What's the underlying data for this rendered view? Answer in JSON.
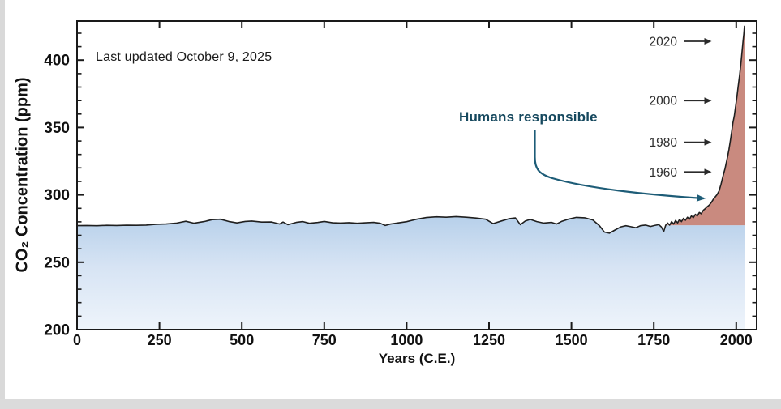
{
  "page": {
    "background": "#ffffff",
    "edge_strip_color": "#d9d9d9",
    "bottom_band_color": "#dbdbdb"
  },
  "chart_data": {
    "type": "area",
    "note": "Last updated October 9, 2025",
    "xlabel": "Years (C.E.)",
    "ylabel": "CO₂ Concentration (ppm)",
    "xlim": [
      0,
      2062
    ],
    "ylim": [
      200,
      429
    ],
    "x_ticks": [
      0,
      250,
      500,
      750,
      1000,
      1250,
      1500,
      1750,
      2000
    ],
    "y_ticks": [
      200,
      250,
      300,
      350,
      400
    ],
    "y_minor_step": 10,
    "grid": false,
    "legend": "none",
    "baseline_ppm": 277.5,
    "human_era_start_year": 1790,
    "annotation": {
      "label": "Humans responsible",
      "text_color": "#15485e",
      "arrow_color": "#1d5c77"
    },
    "year_callouts": [
      {
        "label": "2020",
        "ppm": 414
      },
      {
        "label": "2000",
        "ppm": 370
      },
      {
        "label": "1980",
        "ppm": 339
      },
      {
        "label": "1960",
        "ppm": 317
      }
    ],
    "colors": {
      "line": "#1f1f1f",
      "frame": "#1a1a1a",
      "area_blue_top": "#b7d0ea",
      "area_blue_mid": "#d7e4f4",
      "area_blue_bottom": "#eef4fb",
      "area_red": "#c98a7f",
      "callout_arrow": "#2a2a2a"
    },
    "series": [
      {
        "name": "CO2 concentration (ppm)",
        "points": [
          [
            0,
            277.2
          ],
          [
            30,
            277.3
          ],
          [
            60,
            277.1
          ],
          [
            90,
            277.4
          ],
          [
            120,
            277.3
          ],
          [
            150,
            277.5
          ],
          [
            180,
            277.4
          ],
          [
            210,
            277.6
          ],
          [
            240,
            278.2
          ],
          [
            270,
            278.4
          ],
          [
            300,
            279.0
          ],
          [
            330,
            280.4
          ],
          [
            355,
            279.0
          ],
          [
            385,
            280.2
          ],
          [
            410,
            281.6
          ],
          [
            435,
            281.9
          ],
          [
            460,
            280.3
          ],
          [
            485,
            279.2
          ],
          [
            510,
            280.3
          ],
          [
            530,
            280.6
          ],
          [
            560,
            279.8
          ],
          [
            590,
            279.9
          ],
          [
            615,
            278.4
          ],
          [
            625,
            279.8
          ],
          [
            640,
            277.9
          ],
          [
            665,
            279.6
          ],
          [
            685,
            280.2
          ],
          [
            705,
            278.9
          ],
          [
            730,
            279.5
          ],
          [
            750,
            280.3
          ],
          [
            775,
            279.3
          ],
          [
            800,
            279.1
          ],
          [
            825,
            279.4
          ],
          [
            850,
            278.9
          ],
          [
            875,
            279.3
          ],
          [
            900,
            279.6
          ],
          [
            920,
            278.9
          ],
          [
            935,
            277.3
          ],
          [
            950,
            278.3
          ],
          [
            975,
            279.2
          ],
          [
            1000,
            280.1
          ],
          [
            1030,
            281.9
          ],
          [
            1060,
            283.2
          ],
          [
            1090,
            283.7
          ],
          [
            1120,
            283.4
          ],
          [
            1150,
            283.9
          ],
          [
            1180,
            283.4
          ],
          [
            1210,
            282.8
          ],
          [
            1240,
            281.9
          ],
          [
            1262,
            278.7
          ],
          [
            1285,
            280.4
          ],
          [
            1310,
            282.3
          ],
          [
            1330,
            282.9
          ],
          [
            1345,
            277.9
          ],
          [
            1360,
            280.6
          ],
          [
            1375,
            281.8
          ],
          [
            1395,
            280.2
          ],
          [
            1415,
            279.1
          ],
          [
            1440,
            279.6
          ],
          [
            1455,
            278.4
          ],
          [
            1470,
            280.3
          ],
          [
            1490,
            281.9
          ],
          [
            1515,
            283.3
          ],
          [
            1540,
            283.0
          ],
          [
            1565,
            281.4
          ],
          [
            1585,
            277.2
          ],
          [
            1600,
            272.4
          ],
          [
            1615,
            271.6
          ],
          [
            1630,
            273.6
          ],
          [
            1650,
            276.3
          ],
          [
            1665,
            277.1
          ],
          [
            1680,
            276.4
          ],
          [
            1695,
            275.6
          ],
          [
            1710,
            277.2
          ],
          [
            1725,
            277.6
          ],
          [
            1740,
            276.6
          ],
          [
            1752,
            277.3
          ],
          [
            1765,
            277.9
          ],
          [
            1773,
            276.2
          ],
          [
            1780,
            272.8
          ],
          [
            1786,
            277.4
          ],
          [
            1792,
            279.1
          ],
          [
            1798,
            277.6
          ],
          [
            1804,
            280.2
          ],
          [
            1810,
            278.4
          ],
          [
            1816,
            281.0
          ],
          [
            1822,
            279.2
          ],
          [
            1828,
            281.8
          ],
          [
            1834,
            280.2
          ],
          [
            1840,
            282.6
          ],
          [
            1846,
            281.2
          ],
          [
            1852,
            283.4
          ],
          [
            1858,
            282.0
          ],
          [
            1864,
            284.4
          ],
          [
            1870,
            283.2
          ],
          [
            1876,
            285.6
          ],
          [
            1882,
            284.4
          ],
          [
            1888,
            287.0
          ],
          [
            1894,
            286.0
          ],
          [
            1900,
            288.6
          ],
          [
            1906,
            289.8
          ],
          [
            1912,
            291.2
          ],
          [
            1918,
            292.4
          ],
          [
            1924,
            294.2
          ],
          [
            1930,
            296.6
          ],
          [
            1936,
            298.4
          ],
          [
            1942,
            300.2
          ],
          [
            1948,
            303.0
          ],
          [
            1954,
            308.0
          ],
          [
            1958,
            312.0
          ],
          [
            1962,
            316.0
          ],
          [
            1966,
            319.5
          ],
          [
            1970,
            324.0
          ],
          [
            1974,
            328.5
          ],
          [
            1978,
            334.0
          ],
          [
            1982,
            340.0
          ],
          [
            1986,
            346.5
          ],
          [
            1990,
            353.5
          ],
          [
            1994,
            358.5
          ],
          [
            1998,
            365.5
          ],
          [
            2002,
            372.5
          ],
          [
            2006,
            380.5
          ],
          [
            2010,
            388.5
          ],
          [
            2014,
            397.0
          ],
          [
            2018,
            407.0
          ],
          [
            2021,
            414.5
          ],
          [
            2023,
            419.5
          ],
          [
            2025,
            425.5
          ]
        ]
      }
    ]
  }
}
